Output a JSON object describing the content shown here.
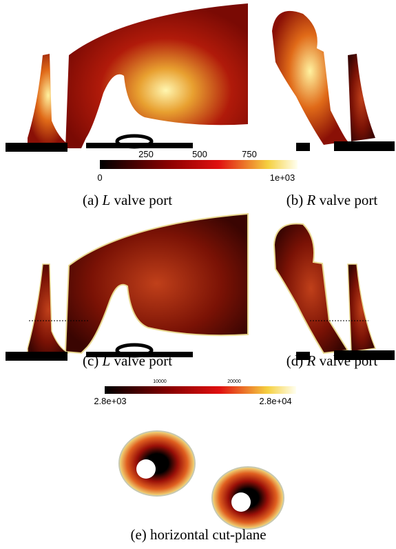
{
  "colorbars": [
    {
      "ticks": [
        "250",
        "500",
        "750"
      ],
      "min": "0",
      "max": "1e+03"
    },
    {
      "ticks": [
        "10000",
        "20000"
      ],
      "min": "2.8e+03",
      "max": "2.8e+04"
    }
  ],
  "captions": [
    {
      "label": "(a)",
      "italic": "L",
      "text": "valve port"
    },
    {
      "label": "(b)",
      "italic": "R",
      "text": "valve port"
    },
    {
      "label": "(c)",
      "italic": "L",
      "text": "valve port"
    },
    {
      "label": "(d)",
      "italic": "R",
      "text": "valve port"
    },
    {
      "label": "(e)",
      "text": "horizontal cut-plane"
    }
  ]
}
